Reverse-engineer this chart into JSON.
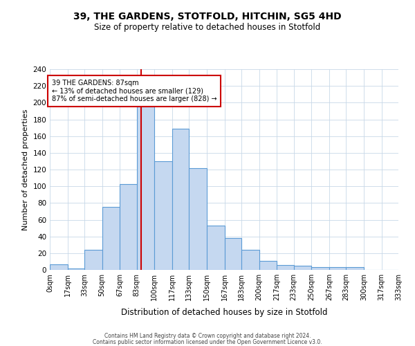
{
  "title": "39, THE GARDENS, STOTFOLD, HITCHIN, SG5 4HD",
  "subtitle": "Size of property relative to detached houses in Stotfold",
  "xlabel": "Distribution of detached houses by size in Stotfold",
  "ylabel": "Number of detached properties",
  "bin_edges": [
    0,
    17,
    33,
    50,
    67,
    83,
    100,
    117,
    133,
    150,
    167,
    183,
    200,
    217,
    233,
    250,
    267,
    283,
    300,
    317,
    333
  ],
  "bin_heights": [
    7,
    2,
    24,
    75,
    103,
    195,
    130,
    169,
    122,
    53,
    38,
    24,
    11,
    6,
    5,
    3,
    3,
    3,
    0,
    0
  ],
  "bar_color": "#c5d8f0",
  "bar_edge_color": "#5b9bd5",
  "property_size": 87,
  "annotation_title": "39 THE GARDENS: 87sqm",
  "annotation_line1": "← 13% of detached houses are smaller (129)",
  "annotation_line2": "87% of semi-detached houses are larger (828) →",
  "vline_color": "#cc0000",
  "annotation_box_edge": "#cc0000",
  "ylim": [
    0,
    240
  ],
  "yticks": [
    0,
    20,
    40,
    60,
    80,
    100,
    120,
    140,
    160,
    180,
    200,
    220,
    240
  ],
  "xtick_labels": [
    "0sqm",
    "17sqm",
    "33sqm",
    "50sqm",
    "67sqm",
    "83sqm",
    "100sqm",
    "117sqm",
    "133sqm",
    "150sqm",
    "167sqm",
    "183sqm",
    "200sqm",
    "217sqm",
    "233sqm",
    "250sqm",
    "267sqm",
    "283sqm",
    "300sqm",
    "317sqm",
    "333sqm"
  ],
  "footer1": "Contains HM Land Registry data © Crown copyright and database right 2024.",
  "footer2": "Contains public sector information licensed under the Open Government Licence v3.0.",
  "background_color": "#ffffff",
  "grid_color": "#c8d8e8"
}
